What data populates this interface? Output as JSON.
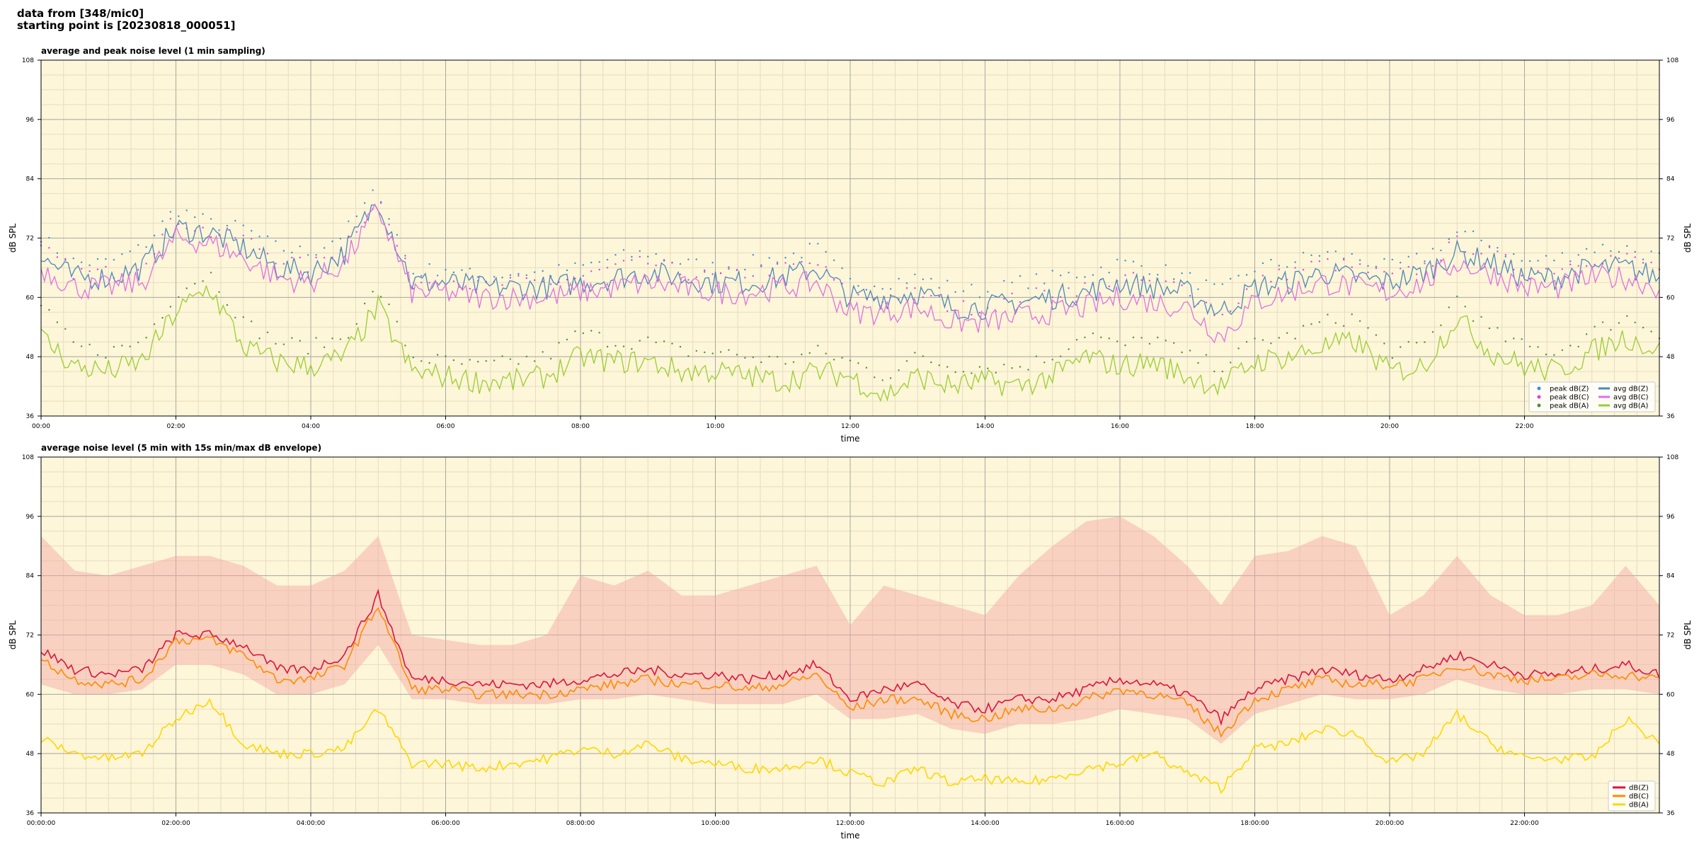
{
  "header": {
    "line1": "data from [348/mic0]",
    "line2": "starting point is [20230818_000051]"
  },
  "colors": {
    "background": "#fdf6d8",
    "grid_major": "#a8a8a8",
    "grid_minor": "#e8dcc0",
    "peak_z": "#3b8fd0",
    "peak_c": "#e040e0",
    "peak_a": "#4a8f3a",
    "avg_z": "#4f86b8",
    "avg_c": "#e070e0",
    "avg_a": "#9acd32",
    "line_z": "#dc143c",
    "line_c": "#ff8c00",
    "line_a": "#ffd700",
    "envelope": "#f4a3a3"
  },
  "chart_data": [
    {
      "type": "line",
      "title": "average and peak noise level (1 min sampling)",
      "xlabel": "time",
      "ylabel": "dB SPL",
      "ylim": [
        36,
        108
      ],
      "xlim": [
        0,
        24
      ],
      "yticks": [
        36,
        48,
        60,
        72,
        84,
        96,
        108
      ],
      "xtick_labels": [
        "00:00",
        "02:00",
        "04:00",
        "06:00",
        "08:00",
        "10:00",
        "12:00",
        "14:00",
        "16:00",
        "18:00",
        "20:00",
        "22:00"
      ],
      "grid": true,
      "legend_position": "bottom-right",
      "legend": [
        "peak dB(Z)",
        "peak dB(C)",
        "peak dB(A)",
        "avg dB(Z)",
        "avg dB(C)",
        "avg dB(A)"
      ],
      "x": [
        0,
        0.5,
        1,
        1.5,
        2,
        2.5,
        3,
        3.5,
        4,
        4.5,
        5,
        5.5,
        6,
        6.5,
        7,
        7.5,
        8,
        8.5,
        9,
        9.5,
        10,
        10.5,
        11,
        11.5,
        12,
        12.5,
        13,
        13.5,
        14,
        14.5,
        15,
        15.5,
        16,
        16.5,
        17,
        17.5,
        18,
        18.5,
        19,
        19.5,
        20,
        20.5,
        21,
        21.5,
        22,
        22.5,
        23,
        23.5,
        24
      ],
      "series": [
        {
          "name": "avg dB(Z)",
          "marker": "line",
          "values": [
            68,
            64,
            64,
            66,
            74,
            73,
            70,
            66,
            65,
            69,
            80,
            63,
            63,
            62,
            62,
            62,
            63,
            64,
            65,
            64,
            63,
            63,
            64,
            66,
            60,
            60,
            61,
            58,
            58,
            59,
            60,
            61,
            63,
            62,
            61,
            57,
            62,
            63,
            65,
            64,
            63,
            65,
            69,
            67,
            64,
            64,
            66,
            66,
            64
          ]
        },
        {
          "name": "avg dB(C)",
          "marker": "line",
          "values": [
            66,
            62,
            62,
            63,
            72,
            71,
            68,
            64,
            63,
            67,
            78,
            61,
            61,
            60,
            60,
            60,
            61,
            62,
            63,
            62,
            61,
            61,
            62,
            63,
            57,
            57,
            58,
            55,
            55,
            56,
            57,
            58,
            60,
            59,
            58,
            52,
            59,
            61,
            63,
            62,
            61,
            63,
            67,
            65,
            62,
            62,
            64,
            64,
            62
          ]
        },
        {
          "name": "avg dB(A)",
          "marker": "line",
          "values": [
            52,
            46,
            45,
            47,
            57,
            62,
            50,
            47,
            46,
            48,
            58,
            45,
            44,
            43,
            43,
            44,
            48,
            47,
            47,
            45,
            45,
            44,
            43,
            45,
            44,
            40,
            44,
            42,
            43,
            42,
            44,
            48,
            46,
            47,
            44,
            42,
            47,
            48,
            50,
            51,
            45,
            46,
            56,
            49,
            46,
            45,
            49,
            52,
            49
          ]
        },
        {
          "name": "peak dB(Z)",
          "marker": "dot",
          "values": [
            72,
            67,
            67,
            70,
            78,
            75,
            74,
            70,
            69,
            73,
            82,
            65,
            66,
            64,
            65,
            65,
            66,
            68,
            69,
            67,
            66,
            67,
            68,
            70,
            63,
            63,
            64,
            62,
            61,
            63,
            64,
            65,
            67,
            66,
            64,
            61,
            66,
            67,
            69,
            68,
            66,
            68,
            73,
            71,
            67,
            68,
            70,
            70,
            68
          ]
        },
        {
          "name": "peak dB(C)",
          "marker": "dot",
          "values": [
            70,
            65,
            65,
            67,
            76,
            73,
            72,
            68,
            66,
            71,
            80,
            63,
            64,
            62,
            63,
            63,
            64,
            66,
            67,
            65,
            64,
            65,
            66,
            67,
            60,
            60,
            61,
            58,
            58,
            60,
            61,
            62,
            64,
            63,
            62,
            56,
            63,
            65,
            67,
            66,
            64,
            66,
            71,
            69,
            65,
            66,
            68,
            68,
            66
          ]
        },
        {
          "name": "peak dB(A)",
          "marker": "dot",
          "values": [
            58,
            50,
            49,
            51,
            61,
            65,
            55,
            51,
            50,
            52,
            62,
            48,
            47,
            46,
            47,
            48,
            53,
            51,
            51,
            49,
            49,
            48,
            47,
            49,
            47,
            44,
            48,
            46,
            46,
            46,
            48,
            53,
            50,
            52,
            48,
            46,
            51,
            52,
            55,
            56,
            49,
            50,
            60,
            53,
            50,
            49,
            53,
            56,
            53
          ]
        }
      ]
    },
    {
      "type": "line",
      "title": "average noise level (5 min with 15s min/max dB envelope)",
      "xlabel": "time",
      "ylabel": "dB SPL",
      "ylim": [
        36,
        108
      ],
      "xlim": [
        0,
        24
      ],
      "yticks": [
        36,
        48,
        60,
        72,
        84,
        96,
        108
      ],
      "xtick_labels": [
        "00:00:00",
        "02:00:00",
        "04:00:00",
        "06:00:00",
        "08:00:00",
        "10:00:00",
        "12:00:00",
        "14:00:00",
        "16:00:00",
        "18:00:00",
        "20:00:00",
        "22:00:00"
      ],
      "grid": true,
      "legend_position": "bottom-right",
      "legend": [
        "dB(Z)",
        "dB(C)",
        "dB(A)"
      ],
      "x": [
        0,
        0.5,
        1,
        1.5,
        2,
        2.5,
        3,
        3.5,
        4,
        4.5,
        5,
        5.5,
        6,
        6.5,
        7,
        7.5,
        8,
        8.5,
        9,
        9.5,
        10,
        10.5,
        11,
        11.5,
        12,
        12.5,
        13,
        13.5,
        14,
        14.5,
        15,
        15.5,
        16,
        16.5,
        17,
        17.5,
        18,
        18.5,
        19,
        19.5,
        20,
        20.5,
        21,
        21.5,
        22,
        22.5,
        23,
        23.5,
        24
      ],
      "series": [
        {
          "name": "dB(Z)",
          "marker": "line",
          "values": [
            69,
            65,
            64,
            65,
            72,
            72,
            70,
            65,
            65,
            68,
            80,
            63,
            63,
            62,
            62,
            62,
            63,
            64,
            65,
            64,
            64,
            63,
            64,
            66,
            59,
            61,
            62,
            58,
            57,
            59,
            59,
            61,
            63,
            62,
            60,
            55,
            61,
            63,
            65,
            64,
            63,
            65,
            68,
            66,
            64,
            64,
            65,
            66,
            64
          ]
        },
        {
          "name": "dB(C)",
          "marker": "line",
          "values": [
            67,
            63,
            62,
            63,
            71,
            71,
            68,
            63,
            63,
            66,
            78,
            61,
            61,
            60,
            60,
            60,
            61,
            62,
            63,
            62,
            62,
            61,
            62,
            64,
            57,
            59,
            59,
            56,
            55,
            57,
            57,
            59,
            61,
            60,
            58,
            52,
            59,
            61,
            63,
            62,
            62,
            63,
            66,
            64,
            63,
            63,
            64,
            64,
            63
          ]
        },
        {
          "name": "dB(A)",
          "marker": "line",
          "values": [
            51,
            48,
            47,
            48,
            55,
            59,
            50,
            48,
            48,
            49,
            57,
            46,
            46,
            45,
            46,
            47,
            49,
            48,
            50,
            47,
            46,
            45,
            45,
            47,
            44,
            42,
            45,
            42,
            43,
            42,
            43,
            45,
            46,
            48,
            44,
            41,
            49,
            50,
            53,
            52,
            46,
            48,
            56,
            50,
            47,
            47,
            47,
            55,
            50
          ]
        },
        {
          "name": "max envelope",
          "marker": "band",
          "values": [
            92,
            85,
            84,
            86,
            88,
            88,
            86,
            82,
            82,
            85,
            92,
            72,
            71,
            70,
            70,
            72,
            84,
            82,
            85,
            80,
            80,
            82,
            84,
            86,
            74,
            82,
            80,
            78,
            76,
            84,
            90,
            95,
            96,
            92,
            86,
            78,
            88,
            89,
            92,
            90,
            76,
            80,
            88,
            80,
            76,
            76,
            78,
            86,
            78
          ]
        },
        {
          "name": "min envelope",
          "marker": "band",
          "values": [
            62,
            60,
            60,
            61,
            66,
            66,
            64,
            60,
            60,
            62,
            70,
            59,
            59,
            58,
            58,
            58,
            59,
            59,
            60,
            59,
            58,
            58,
            58,
            60,
            55,
            55,
            56,
            53,
            52,
            54,
            54,
            55,
            57,
            56,
            55,
            50,
            56,
            58,
            60,
            59,
            59,
            60,
            63,
            61,
            60,
            60,
            61,
            61,
            60
          ]
        }
      ]
    }
  ]
}
